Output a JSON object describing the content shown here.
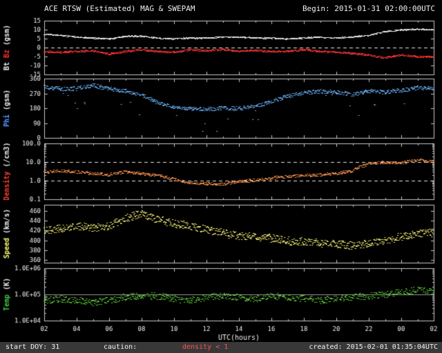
{
  "chart_data": {
    "type": "scatter",
    "title": "ACE RTSW (Estimated) MAG & SWEPAM",
    "begin_label": "Begin: 2015-01-31 02:00:00UTC",
    "x_axis": {
      "label": "UTC(hours)",
      "xlim": [
        2,
        26
      ],
      "xticks": [
        2,
        4,
        6,
        8,
        10,
        12,
        14,
        16,
        18,
        20,
        22,
        24,
        26
      ],
      "xtick_labels": [
        "02",
        "04",
        "06",
        "08",
        "10",
        "12",
        "14",
        "16",
        "18",
        "20",
        "22",
        "00",
        "02"
      ]
    },
    "keypoint_hours": [
      2,
      3,
      4,
      5,
      6,
      7,
      8,
      9,
      10,
      11,
      12,
      13,
      14,
      15,
      16,
      17,
      18,
      19,
      20,
      21,
      22,
      23,
      24,
      25,
      26
    ],
    "panels": [
      {
        "name": "bt-bz",
        "yscale": "linear",
        "ylim": [
          -15,
          15
        ],
        "yticks": [
          15,
          10,
          5,
          0,
          -5,
          -10,
          -15
        ],
        "ytick_labels": [
          "15",
          "10",
          "5",
          "0",
          "-5",
          "-10",
          "-15"
        ],
        "ylabel_segments": [
          {
            "text": "Bt",
            "color": "#f0f0f0"
          },
          {
            "text": " Bz",
            "color": "#ff3434"
          },
          {
            "text": " (gsm)",
            "color": "#f0f0f0"
          }
        ],
        "ref_lines": [
          {
            "y": 0,
            "style": "dashed",
            "color": "#e8e8e8"
          }
        ],
        "series": [
          {
            "name": "Bt",
            "color": "#f0f0f0",
            "jitter": 0.35,
            "jitter_space": "linear",
            "gap_prob": 0.03,
            "values": [
              7.5,
              7.0,
              6.0,
              5.5,
              5.0,
              6.5,
              6.5,
              5.5,
              5.0,
              5.5,
              5.5,
              6.0,
              6.0,
              5.5,
              5.5,
              5.0,
              5.5,
              6.0,
              5.5,
              6.0,
              7.0,
              9.0,
              10.0,
              10.5,
              10.0
            ]
          },
          {
            "name": "Bz",
            "color": "#ff3434",
            "jitter": 0.5,
            "jitter_space": "linear",
            "gap_prob": 0.05,
            "values": [
              -2.0,
              -2.5,
              -2.0,
              -1.5,
              -3.5,
              -2.0,
              -1.0,
              -2.0,
              -2.5,
              -1.0,
              -1.5,
              -1.0,
              -2.0,
              -1.5,
              -2.0,
              -2.0,
              -1.0,
              -2.0,
              -2.5,
              -3.0,
              -4.0,
              -5.5,
              -4.0,
              -5.0,
              -5.0
            ]
          }
        ]
      },
      {
        "name": "phi",
        "yscale": "linear",
        "ylim": [
          0,
          360
        ],
        "yticks": [
          360,
          270,
          180,
          90,
          0
        ],
        "ytick_labels": [
          "360",
          "270",
          "180",
          "90",
          "0"
        ],
        "ylabel_segments": [
          {
            "text": "Phi",
            "color": "#4f9bff"
          },
          {
            "text": " (gsm)",
            "color": "#f0f0f0"
          }
        ],
        "ref_lines": [],
        "series": [
          {
            "name": "Phi",
            "color": "#6fb7ff",
            "jitter": 12,
            "jitter_space": "linear",
            "gap_prob": 0.12,
            "outlier_prob": 0.03,
            "outlier_mag": 140,
            "values": [
              310,
              300,
              300,
              320,
              300,
              285,
              265,
              215,
              185,
              180,
              175,
              182,
              180,
              195,
              220,
              255,
              275,
              285,
              280,
              265,
              285,
              280,
              290,
              305,
              300
            ]
          }
        ]
      },
      {
        "name": "density",
        "yscale": "log",
        "ylim": [
          0.1,
          100
        ],
        "yticks": [
          100,
          10,
          1,
          0.1
        ],
        "ytick_labels": [
          "100.0",
          "10.0",
          "1.0",
          "0.1"
        ],
        "ylabel_segments": [
          {
            "text": "Density",
            "color": "#ff4334"
          },
          {
            "text": " (/cm3)",
            "color": "#f0f0f0"
          }
        ],
        "ref_lines": [
          {
            "y": 10,
            "style": "dashed",
            "color": "#e8e8e8"
          },
          {
            "y": 1,
            "style": "dashed",
            "color": "#e8e8e8"
          }
        ],
        "series": [
          {
            "name": "Density",
            "color": "#ff9850",
            "jitter": 0.08,
            "jitter_space": "log",
            "gap_prob": 0.18,
            "values": [
              3.0,
              3.5,
              3.0,
              2.5,
              2.2,
              3.0,
              2.5,
              2.0,
              1.2,
              0.8,
              0.7,
              0.7,
              0.9,
              1.1,
              1.4,
              1.7,
              2.0,
              2.2,
              2.5,
              3.5,
              8.0,
              10.0,
              9.0,
              13.0,
              12.0
            ]
          }
        ]
      },
      {
        "name": "speed",
        "yscale": "linear",
        "ylim": [
          355,
          472
        ],
        "yticks": [
          460,
          440,
          420,
          400,
          380,
          360
        ],
        "ytick_labels": [
          "460",
          "440",
          "420",
          "400",
          "380",
          "360"
        ],
        "ylabel_segments": [
          {
            "text": "Speed",
            "color": "#fdf97a"
          },
          {
            "text": " (km/s)",
            "color": "#f0f0f0"
          }
        ],
        "ref_lines": [],
        "series": [
          {
            "name": "Speed",
            "color": "#fdf97a",
            "jitter": 8,
            "jitter_space": "linear",
            "gap_prob": 0.06,
            "values": [
              420,
              425,
              430,
              425,
              430,
              445,
              455,
              442,
              435,
              430,
              422,
              416,
              410,
              408,
              405,
              400,
              398,
              395,
              394,
              390,
              394,
              400,
              408,
              414,
              416
            ]
          }
        ]
      },
      {
        "name": "temp",
        "yscale": "log",
        "ylim": [
          10000,
          1000000
        ],
        "yticks": [
          1000000,
          100000,
          10000
        ],
        "ytick_labels": [
          "1.0E+06",
          "1.0E+05",
          "1.0E+04"
        ],
        "ylabel_segments": [
          {
            "text": "Temp",
            "color": "#44cc44"
          },
          {
            "text": " (K)",
            "color": "#f0f0f0"
          }
        ],
        "ref_lines": [
          {
            "y": 100000,
            "style": "solid",
            "color": "#9a9a9a"
          }
        ],
        "series": [
          {
            "name": "Temp",
            "color": "#67d83f",
            "jitter": 0.13,
            "jitter_space": "log",
            "gap_prob": 0.15,
            "values": [
              60000,
              70000,
              60000,
              50000,
              60000,
              80000,
              90000,
              90000,
              70000,
              60000,
              80000,
              90000,
              80000,
              70000,
              90000,
              80000,
              70000,
              60000,
              70000,
              80000,
              90000,
              100000,
              120000,
              150000,
              130000
            ]
          }
        ]
      }
    ]
  },
  "footer": {
    "start_doy": "start DOY: 31",
    "caution_label": "caution:",
    "caution_value": "density < 1",
    "created": "created: 2015-02-01 01:35:04UTC"
  }
}
